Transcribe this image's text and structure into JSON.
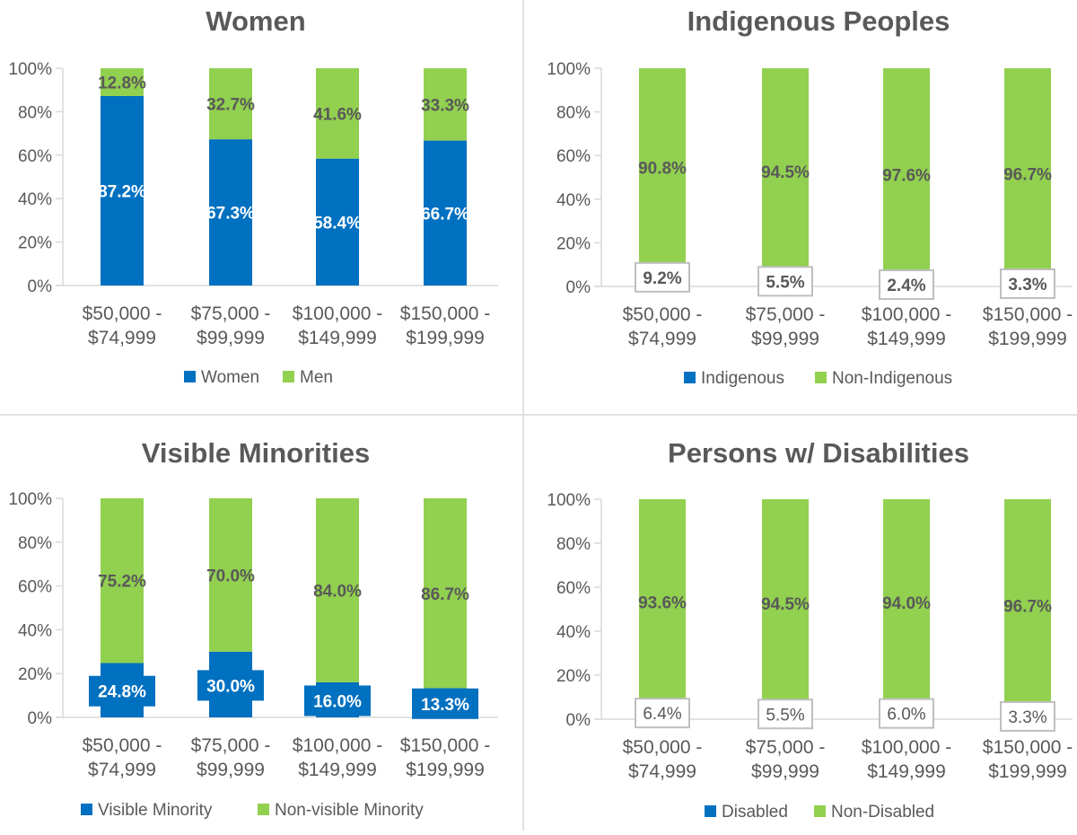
{
  "colors": {
    "minority": "#0070C0",
    "majority": "#92D050",
    "text": "#595959",
    "grid": "#D9D9D9"
  },
  "chart_data": [
    {
      "type": "bar",
      "stacked": true,
      "title": "Women",
      "categories": [
        [
          "$50,000 -",
          "$74,999"
        ],
        [
          "$75,000 -",
          "$99,999"
        ],
        [
          "$100,000 -",
          "$149,999"
        ],
        [
          "$150,000 -",
          "$199,999"
        ]
      ],
      "ylim": [
        0,
        100
      ],
      "yticks": [
        "0%",
        "20%",
        "40%",
        "60%",
        "80%",
        "100%"
      ],
      "legend_position": "bottom",
      "series": [
        {
          "name": "Women",
          "values": [
            87.2,
            67.3,
            58.4,
            66.7
          ],
          "labels": [
            "87.2%",
            "67.3%",
            "58.4%",
            "66.7%"
          ]
        },
        {
          "name": "Men",
          "values": [
            12.8,
            32.7,
            41.6,
            33.3
          ],
          "labels": [
            "12.8%",
            "32.7%",
            "41.6%",
            "33.3%"
          ]
        }
      ]
    },
    {
      "type": "bar",
      "stacked": true,
      "title": "Indigenous Peoples",
      "categories": [
        [
          "$50,000 -",
          "$74,999"
        ],
        [
          "$75,000 -",
          "$99,999"
        ],
        [
          "$100,000 -",
          "$149,999"
        ],
        [
          "$150,000 -",
          "$199,999"
        ]
      ],
      "ylim": [
        0,
        100
      ],
      "yticks": [
        "0%",
        "20%",
        "40%",
        "60%",
        "80%",
        "100%"
      ],
      "legend_position": "bottom",
      "series": [
        {
          "name": "Indigenous",
          "values": [
            9.2,
            5.5,
            2.4,
            3.3
          ],
          "labels": [
            "9.2%",
            "5.5%",
            "2.4%",
            "3.3%"
          ]
        },
        {
          "name": "Non-Indigenous",
          "values": [
            90.8,
            94.5,
            97.6,
            96.7
          ],
          "labels": [
            "90.8%",
            "94.5%",
            "97.6%",
            "96.7%"
          ]
        }
      ]
    },
    {
      "type": "bar",
      "stacked": true,
      "title": "Visible Minorities",
      "categories": [
        [
          "$50,000 -",
          "$74,999"
        ],
        [
          "$75,000 -",
          "$99,999"
        ],
        [
          "$100,000 -",
          "$149,999"
        ],
        [
          "$150,000 -",
          "$199,999"
        ]
      ],
      "ylim": [
        0,
        100
      ],
      "yticks": [
        "0%",
        "20%",
        "40%",
        "60%",
        "80%",
        "100%"
      ],
      "legend_position": "bottom",
      "series": [
        {
          "name": "Visible Minority",
          "values": [
            24.8,
            30.0,
            16.0,
            13.3
          ],
          "labels": [
            "24.8%",
            "30.0%",
            "16.0%",
            "13.3%"
          ]
        },
        {
          "name": "Non-visible Minority",
          "values": [
            75.2,
            70.0,
            84.0,
            86.7
          ],
          "labels": [
            "75.2%",
            "70.0%",
            "84.0%",
            "86.7%"
          ]
        }
      ]
    },
    {
      "type": "bar",
      "stacked": true,
      "title": "Persons w/ Disabilities",
      "categories": [
        [
          "$50,000 -",
          "$74,999"
        ],
        [
          "$75,000 -",
          "$99,999"
        ],
        [
          "$100,000 -",
          "$149,999"
        ],
        [
          "$150,000 -",
          "$199,999"
        ]
      ],
      "ylim": [
        0,
        100
      ],
      "yticks": [
        "0%",
        "20%",
        "40%",
        "60%",
        "80%",
        "100%"
      ],
      "legend_position": "bottom",
      "series": [
        {
          "name": "Disabled",
          "values": [
            6.4,
            5.5,
            6.0,
            3.3
          ],
          "labels": [
            "6.4%",
            "5.5%",
            "6.0%",
            "3.3%"
          ]
        },
        {
          "name": "Non-Disabled",
          "values": [
            93.6,
            94.5,
            94.0,
            96.7
          ],
          "labels": [
            "93.6%",
            "94.5%",
            "94.0%",
            "96.7%"
          ]
        }
      ]
    }
  ]
}
